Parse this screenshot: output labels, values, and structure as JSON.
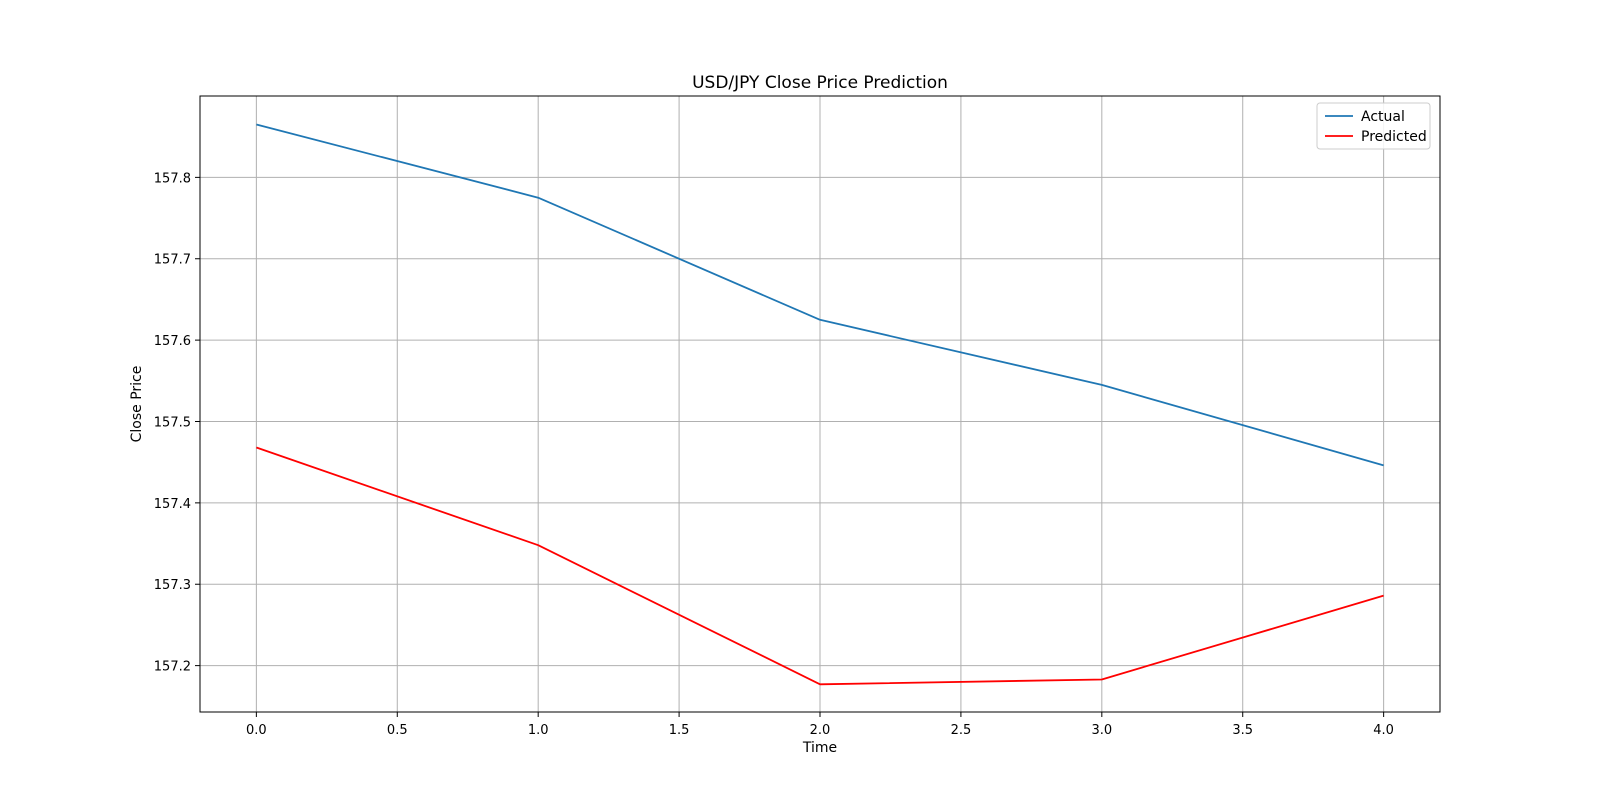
{
  "chart_data": {
    "type": "line",
    "title": "USD/JPY Close Price Prediction",
    "xlabel": "Time",
    "ylabel": "Close Price",
    "x": [
      0,
      1,
      2,
      3,
      4
    ],
    "series": [
      {
        "name": "Actual",
        "color": "#1f77b4",
        "values": [
          157.865,
          157.775,
          157.625,
          157.545,
          157.446
        ]
      },
      {
        "name": "Predicted",
        "color": "#ff0000",
        "values": [
          157.468,
          157.348,
          157.177,
          157.183,
          157.286
        ]
      }
    ],
    "xlim": [
      -0.2,
      4.2
    ],
    "ylim": [
      157.143,
      157.9
    ],
    "xticks": [
      0,
      0.5,
      1,
      1.5,
      2,
      2.5,
      3,
      3.5,
      4
    ],
    "xtick_labels": [
      "0.0",
      "0.5",
      "1.0",
      "1.5",
      "2.0",
      "2.5",
      "3.0",
      "3.5",
      "4.0"
    ],
    "yticks": [
      157.2,
      157.3,
      157.4,
      157.5,
      157.6,
      157.7,
      157.8
    ],
    "ytick_labels": [
      "157.2",
      "157.3",
      "157.4",
      "157.5",
      "157.6",
      "157.7",
      "157.8"
    ],
    "grid": true,
    "legend_position": "top-right"
  }
}
